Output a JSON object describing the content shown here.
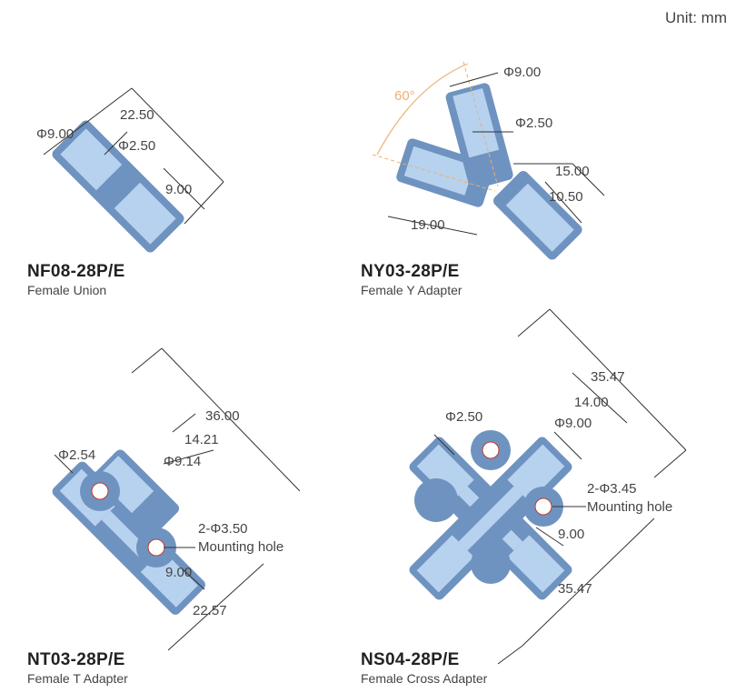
{
  "unit_label": "Unit: mm",
  "parts": [
    {
      "code": "NF08-28P/E",
      "description": "Female Union",
      "dimensions": [
        "22.50",
        "Φ9.00",
        "Φ2.50",
        "9.00"
      ]
    },
    {
      "code": "NY03-28P/E",
      "description": "Female Y Adapter",
      "angle": "60°",
      "dimensions": [
        "Φ9.00",
        "Φ2.50",
        "15.00",
        "10.50",
        "19.00"
      ]
    },
    {
      "code": "NT03-28P/E",
      "description": "Female T Adapter",
      "dimensions": [
        "36.00",
        "14.21",
        "Φ2.54",
        "Φ9.14",
        "2-Φ3.50",
        "Mounting hole",
        "9.00",
        "22.57"
      ]
    },
    {
      "code": "NS04-28P/E",
      "description": "Female Cross Adapter",
      "dimensions": [
        "35.47",
        "14.00",
        "Φ2.50",
        "Φ9.00",
        "2-Φ3.45",
        "Mounting hole",
        "9.00",
        "35.47"
      ]
    }
  ],
  "colors": {
    "body": "#6f93c0",
    "thread": "#b6d2ee",
    "angle": "#f0b070",
    "hole": "#c0392b"
  }
}
